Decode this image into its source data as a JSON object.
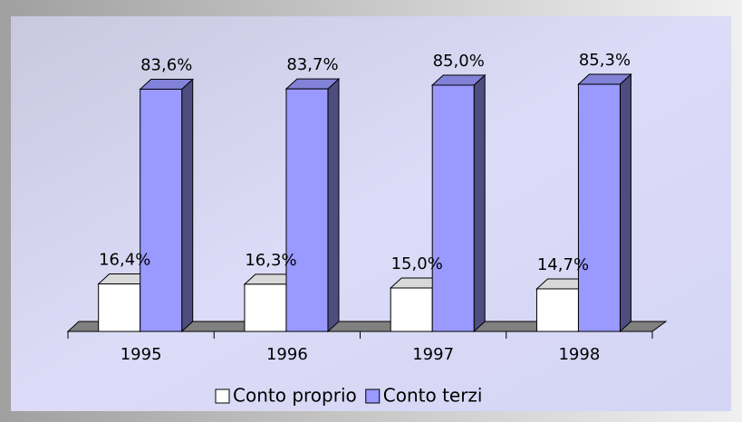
{
  "chart_data": {
    "type": "bar3d",
    "categories": [
      "1995",
      "1996",
      "1997",
      "1998"
    ],
    "series": [
      {
        "name": "Conto proprio",
        "color": "#ffffff",
        "values": [
          16.4,
          16.3,
          15.0,
          14.7
        ],
        "value_labels": [
          "16,4%",
          "16,3%",
          "15,0%",
          "14,7%"
        ]
      },
      {
        "name": "Conto terzi",
        "color": "#9999ff",
        "values": [
          83.6,
          83.7,
          85.0,
          85.3
        ],
        "value_labels": [
          "83,6%",
          "83,7%",
          "85,0%",
          "85,3%"
        ]
      }
    ]
  }
}
